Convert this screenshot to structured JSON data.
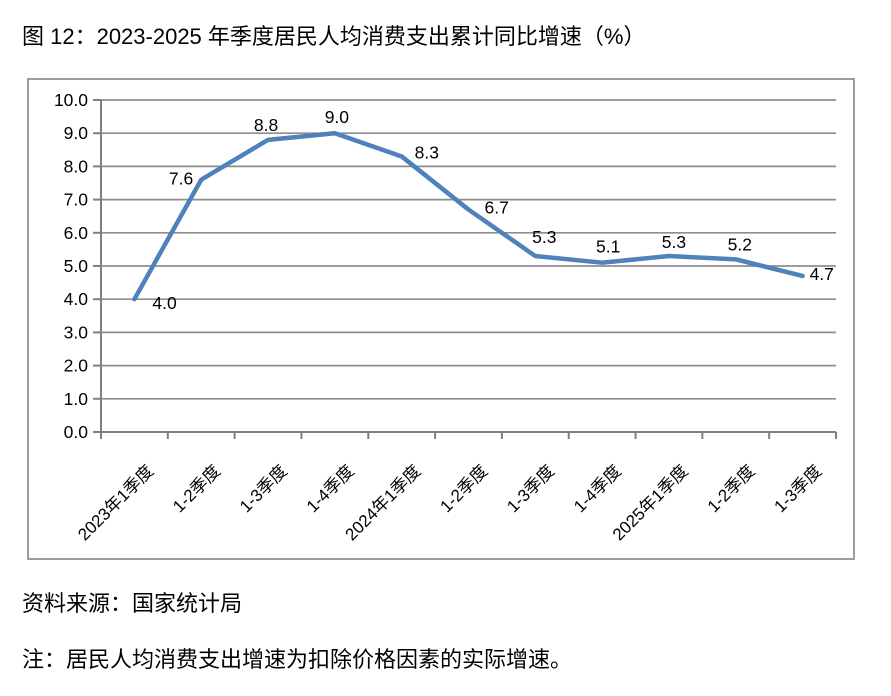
{
  "page": {
    "title": "图 12：2023-2025 年季度居民人均消费支出累计同比增速（%）",
    "source": "资料来源：国家统计局",
    "note": "注：居民人均消费支出增速为扣除价格因素的实际增速。"
  },
  "colors": {
    "line": "#4F81BD",
    "grid": "#8E8E8E",
    "axis": "#7F7F7F",
    "frame": "#9D9D9D",
    "text": "#000000"
  },
  "chart_data": {
    "type": "line",
    "title": "图 12：2023-2025 年季度居民人均消费支出累计同比增速（%）",
    "categories": [
      "2023年1季度",
      "1-2季度",
      "1-3季度",
      "1-4季度",
      "2024年1季度",
      "1-2季度",
      "1-3季度",
      "1-4季度",
      "2025年1季度",
      "1-2季度",
      "1-3季度"
    ],
    "values": [
      4.0,
      7.6,
      8.8,
      9.0,
      8.3,
      6.7,
      5.3,
      5.1,
      5.3,
      5.2,
      4.7
    ],
    "data_labels": [
      "4.0",
      "7.6",
      "8.8",
      "9.0",
      "8.3",
      "6.7",
      "5.3",
      "5.1",
      "5.3",
      "5.2",
      "4.7"
    ],
    "xlabel": "",
    "ylabel": "",
    "ylim": [
      0.0,
      10.0
    ],
    "ytick_step": 1.0,
    "ytick_labels": [
      "0.0",
      "1.0",
      "2.0",
      "3.0",
      "4.0",
      "5.0",
      "6.0",
      "7.0",
      "8.0",
      "9.0",
      "10.0"
    ],
    "grid": true,
    "legend": "none",
    "x_label_rotation": -45
  }
}
